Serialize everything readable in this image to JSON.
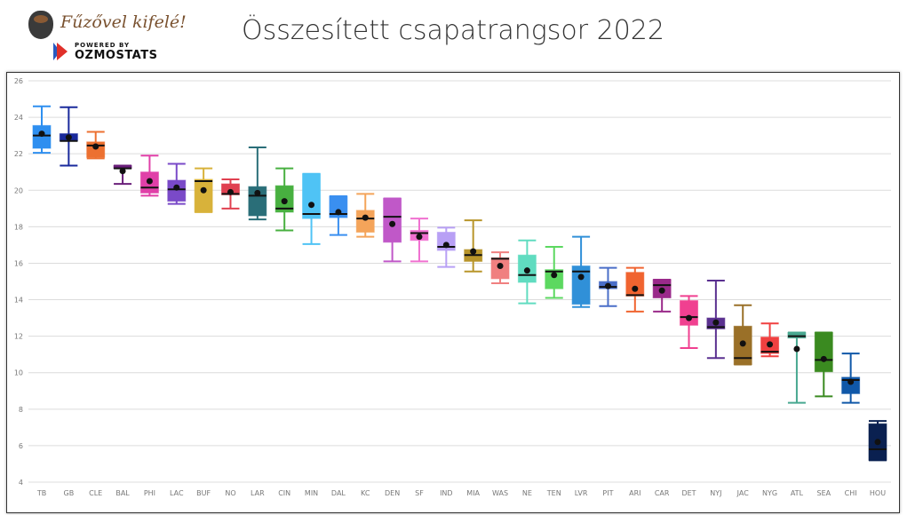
{
  "logo": {
    "script_text": "Fűzővel kifelé!",
    "powered_by": "POWERED BY",
    "brand": "OZMOSTATS"
  },
  "title": "Összesített csapatrangsor 2022",
  "chart_data": {
    "type": "box",
    "title": "Összesített csapatrangsor 2022",
    "ylim": [
      4,
      26
    ],
    "yticks": [
      4,
      6,
      8,
      10,
      12,
      14,
      16,
      18,
      20,
      22,
      24,
      26
    ],
    "grid": true,
    "legend": "none",
    "teams": [
      {
        "name": "TB",
        "min": 22.05,
        "q1": 22.3,
        "median": 23.0,
        "q3": 23.55,
        "max": 24.6,
        "mean": 23.1,
        "color": "#2e8ff0"
      },
      {
        "name": "GB",
        "min": 21.35,
        "q1": 22.7,
        "median": 22.7,
        "q3": 23.1,
        "max": 24.55,
        "mean": 22.9,
        "color": "#1a2a9c"
      },
      {
        "name": "CLE",
        "min": 21.75,
        "q1": 21.8,
        "median": 22.45,
        "q3": 22.65,
        "max": 23.2,
        "mean": 22.4,
        "color": "#ec7030"
      },
      {
        "name": "BAL",
        "min": 20.35,
        "q1": 21.2,
        "median": 21.2,
        "q3": 21.35,
        "max": 21.35,
        "mean": 21.05,
        "color": "#6a1f7a"
      },
      {
        "name": "PHI",
        "min": 19.7,
        "q1": 19.85,
        "median": 20.15,
        "q3": 21.0,
        "max": 21.9,
        "mean": 20.5,
        "color": "#e040a8"
      },
      {
        "name": "LAC",
        "min": 19.25,
        "q1": 19.4,
        "median": 20.05,
        "q3": 20.55,
        "max": 21.45,
        "mean": 20.15,
        "color": "#7a4ac8"
      },
      {
        "name": "BUF",
        "min": 18.8,
        "q1": 18.8,
        "median": 20.5,
        "q3": 20.6,
        "max": 21.2,
        "mean": 20.0,
        "color": "#d8b23a"
      },
      {
        "name": "NO",
        "min": 19.0,
        "q1": 19.75,
        "median": 19.8,
        "q3": 20.35,
        "max": 20.6,
        "mean": 19.9,
        "color": "#e04050"
      },
      {
        "name": "LAR",
        "min": 18.4,
        "q1": 18.6,
        "median": 19.7,
        "q3": 20.2,
        "max": 22.35,
        "mean": 19.85,
        "color": "#2a6e78"
      },
      {
        "name": "CIN",
        "min": 17.8,
        "q1": 18.8,
        "median": 19.0,
        "q3": 20.25,
        "max": 21.2,
        "mean": 19.4,
        "color": "#48b040"
      },
      {
        "name": "MIN",
        "min": 17.05,
        "q1": 18.45,
        "median": 18.7,
        "q3": 20.9,
        "max": 20.9,
        "mean": 19.2,
        "color": "#4fc3f5"
      },
      {
        "name": "DAL",
        "min": 17.55,
        "q1": 18.5,
        "median": 18.7,
        "q3": 19.67,
        "max": 19.67,
        "mean": 18.8,
        "color": "#3a8ff0"
      },
      {
        "name": "KC",
        "min": 17.45,
        "q1": 17.7,
        "median": 18.45,
        "q3": 18.9,
        "max": 19.8,
        "mean": 18.5,
        "color": "#f4a45a"
      },
      {
        "name": "DEN",
        "min": 16.1,
        "q1": 17.15,
        "median": 18.55,
        "q3": 19.55,
        "max": 19.55,
        "mean": 18.15,
        "color": "#c058c8"
      },
      {
        "name": "SF",
        "min": 16.1,
        "q1": 17.25,
        "median": 17.65,
        "q3": 17.8,
        "max": 18.45,
        "mean": 17.45,
        "color": "#f070d0"
      },
      {
        "name": "IND",
        "min": 15.8,
        "q1": 16.7,
        "median": 16.9,
        "q3": 17.7,
        "max": 17.95,
        "mean": 17.0,
        "color": "#b8a0f5"
      },
      {
        "name": "MIA",
        "min": 15.55,
        "q1": 16.1,
        "median": 16.45,
        "q3": 16.75,
        "max": 18.35,
        "mean": 16.65,
        "color": "#b8952a"
      },
      {
        "name": "WAS",
        "min": 14.9,
        "q1": 15.15,
        "median": 16.25,
        "q3": 16.3,
        "max": 16.6,
        "mean": 15.85,
        "color": "#f08080"
      },
      {
        "name": "NE",
        "min": 13.8,
        "q1": 14.95,
        "median": 15.35,
        "q3": 16.45,
        "max": 17.25,
        "mean": 15.6,
        "color": "#60dcc0"
      },
      {
        "name": "TEN",
        "min": 14.1,
        "q1": 14.6,
        "median": 15.55,
        "q3": 15.65,
        "max": 16.9,
        "mean": 15.35,
        "color": "#5cd860"
      },
      {
        "name": "LVR",
        "min": 13.6,
        "q1": 13.75,
        "median": 15.55,
        "q3": 15.85,
        "max": 17.45,
        "mean": 15.25,
        "color": "#3090d8"
      },
      {
        "name": "PIT",
        "min": 13.65,
        "q1": 14.6,
        "median": 14.7,
        "q3": 15.0,
        "max": 15.75,
        "mean": 14.75,
        "color": "#4a6ec8"
      },
      {
        "name": "ARI",
        "min": 13.35,
        "q1": 14.2,
        "median": 14.25,
        "q3": 15.5,
        "max": 15.75,
        "mean": 14.6,
        "color": "#f06430"
      },
      {
        "name": "CAR",
        "min": 13.35,
        "q1": 14.1,
        "median": 14.8,
        "q3": 15.1,
        "max": 15.1,
        "mean": 14.5,
        "color": "#9a2a8a"
      },
      {
        "name": "DET",
        "min": 11.35,
        "q1": 12.6,
        "median": 13.05,
        "q3": 13.95,
        "max": 14.2,
        "mean": 13.0,
        "color": "#f04090"
      },
      {
        "name": "NYJ",
        "min": 10.8,
        "q1": 12.4,
        "median": 12.5,
        "q3": 13.0,
        "max": 15.05,
        "mean": 12.75,
        "color": "#5a3090"
      },
      {
        "name": "JAC",
        "min": 10.45,
        "q1": 10.45,
        "median": 10.8,
        "q3": 12.55,
        "max": 13.7,
        "mean": 11.6,
        "color": "#9a7028"
      },
      {
        "name": "NYG",
        "min": 10.9,
        "q1": 11.05,
        "median": 11.15,
        "q3": 11.95,
        "max": 12.7,
        "mean": 11.55,
        "color": "#f04040"
      },
      {
        "name": "ATL",
        "min": 8.35,
        "q1": 11.9,
        "median": 12.0,
        "q3": 12.2,
        "max": 12.2,
        "mean": 11.3,
        "color": "#48a890"
      },
      {
        "name": "SEA",
        "min": 8.7,
        "q1": 10.05,
        "median": 10.7,
        "q3": 12.2,
        "max": 12.2,
        "mean": 10.75,
        "color": "#3a8a20"
      },
      {
        "name": "CHI",
        "min": 8.35,
        "q1": 8.85,
        "median": 9.6,
        "q3": 9.75,
        "max": 11.05,
        "mean": 9.5,
        "color": "#1058a8"
      },
      {
        "name": "HOU",
        "min": 5.2,
        "q1": 5.2,
        "median": 5.8,
        "q3": 7.2,
        "max": 7.35,
        "mean": 6.2,
        "color": "#0a2050"
      }
    ]
  }
}
